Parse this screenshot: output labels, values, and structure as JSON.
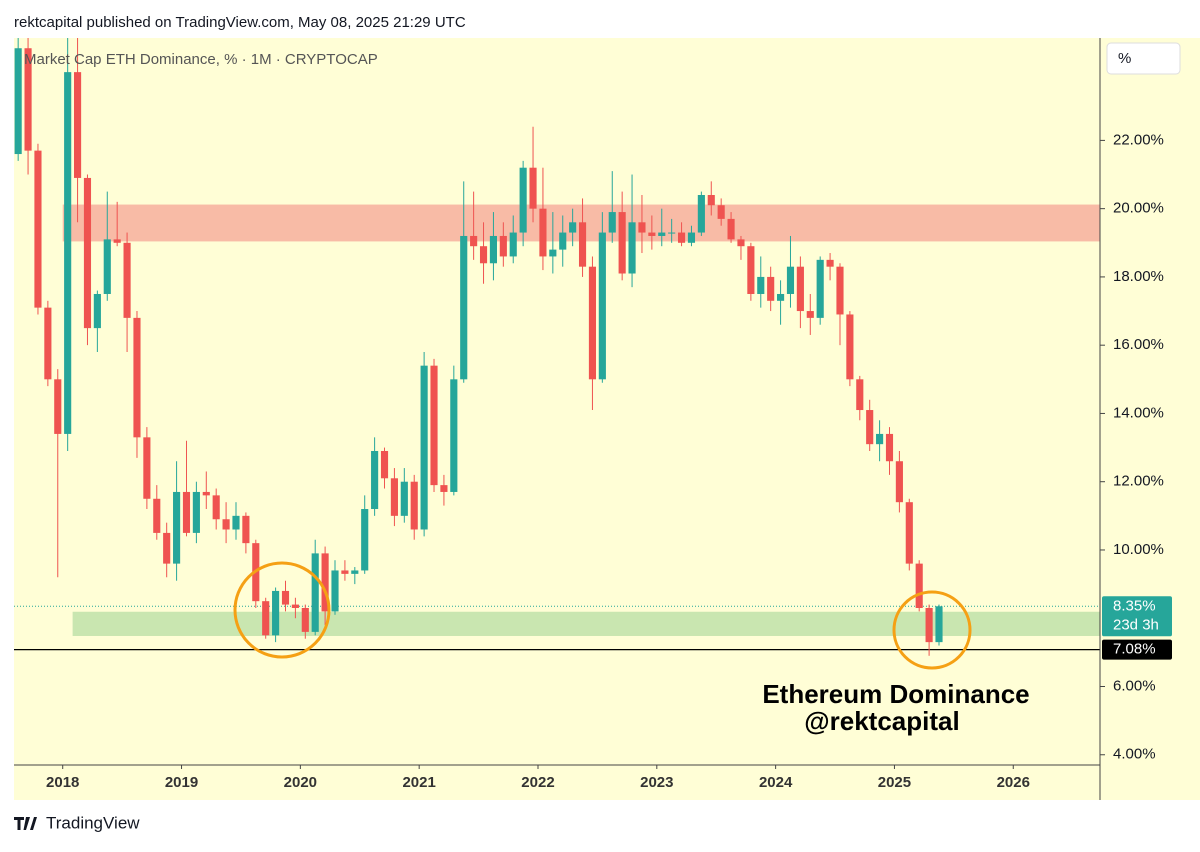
{
  "chart_data": {
    "type": "candlestick",
    "header": "rektcapital published on TradingView.com, May 08, 2025 21:29 UTC",
    "title": "Market Cap ETH Dominance, % · 1M · CRYPTOCAP",
    "unit_label": "%",
    "annotation": [
      "Ethereum Dominance",
      "@rektcapital"
    ],
    "brand": "TradingView",
    "up_color": "#26a69a",
    "down_color": "#ef5350",
    "x": [
      "2017-08",
      "2017-09",
      "2017-10",
      "2017-11",
      "2017-12",
      "2018-01",
      "2018-02",
      "2018-03",
      "2018-04",
      "2018-05",
      "2018-06",
      "2018-07",
      "2018-08",
      "2018-09",
      "2018-10",
      "2018-11",
      "2018-12",
      "2019-01",
      "2019-02",
      "2019-03",
      "2019-04",
      "2019-05",
      "2019-06",
      "2019-07",
      "2019-08",
      "2019-09",
      "2019-10",
      "2019-11",
      "2019-12",
      "2020-01",
      "2020-02",
      "2020-03",
      "2020-04",
      "2020-05",
      "2020-06",
      "2020-07",
      "2020-08",
      "2020-09",
      "2020-10",
      "2020-11",
      "2020-12",
      "2021-01",
      "2021-02",
      "2021-03",
      "2021-04",
      "2021-05",
      "2021-06",
      "2021-07",
      "2021-08",
      "2021-09",
      "2021-10",
      "2021-11",
      "2021-12",
      "2022-01",
      "2022-02",
      "2022-03",
      "2022-04",
      "2022-05",
      "2022-06",
      "2022-07",
      "2022-08",
      "2022-09",
      "2022-10",
      "2022-11",
      "2022-12",
      "2023-01",
      "2023-02",
      "2023-03",
      "2023-04",
      "2023-05",
      "2023-06",
      "2023-07",
      "2023-08",
      "2023-09",
      "2023-10",
      "2023-11",
      "2023-12",
      "2024-01",
      "2024-02",
      "2024-03",
      "2024-04",
      "2024-05",
      "2024-06",
      "2024-07",
      "2024-08",
      "2024-09",
      "2024-10",
      "2024-11",
      "2024-12",
      "2025-01",
      "2025-02",
      "2025-03",
      "2025-04",
      "2025-05"
    ],
    "open": [
      21.6,
      24.7,
      21.7,
      17.1,
      15.0,
      13.4,
      24.0,
      20.9,
      16.5,
      17.5,
      19.1,
      19.0,
      16.8,
      13.3,
      11.5,
      10.5,
      9.6,
      11.7,
      10.5,
      11.7,
      11.6,
      10.9,
      10.6,
      11.0,
      10.2,
      8.5,
      7.5,
      8.8,
      8.4,
      8.3,
      7.6,
      9.9,
      8.2,
      9.4,
      9.3,
      9.4,
      11.2,
      12.9,
      12.1,
      11.0,
      12.0,
      10.6,
      15.4,
      11.9,
      11.7,
      15.0,
      19.2,
      18.9,
      18.4,
      19.2,
      18.6,
      19.3,
      21.2,
      20.0,
      18.6,
      18.8,
      19.3,
      19.6,
      18.3,
      15.0,
      19.3,
      19.9,
      18.1,
      19.6,
      19.3,
      19.2,
      19.3,
      19.3,
      19.0,
      19.3,
      20.4,
      20.1,
      19.7,
      19.1,
      18.9,
      17.5,
      18.0,
      17.3,
      17.5,
      18.3,
      17.0,
      16.8,
      18.5,
      18.3,
      16.9,
      15.0,
      14.1,
      13.1,
      13.4,
      12.6,
      11.4,
      9.6,
      8.3,
      7.3
    ],
    "high": [
      25.0,
      25.0,
      21.9,
      17.3,
      15.3,
      25.0,
      25.0,
      21.0,
      17.6,
      20.5,
      20.2,
      19.3,
      17.0,
      13.6,
      11.9,
      10.8,
      12.6,
      13.2,
      12.0,
      12.3,
      11.8,
      11.4,
      11.4,
      11.1,
      10.3,
      8.6,
      8.9,
      9.1,
      8.6,
      8.4,
      10.3,
      10.1,
      9.7,
      9.7,
      9.5,
      11.6,
      13.3,
      13.0,
      12.4,
      12.4,
      12.2,
      15.8,
      15.6,
      12.2,
      15.4,
      20.8,
      20.5,
      19.6,
      19.9,
      19.6,
      19.8,
      21.4,
      22.4,
      21.2,
      19.9,
      19.8,
      20.0,
      20.3,
      18.6,
      19.9,
      21.1,
      20.5,
      21.0,
      20.4,
      19.8,
      20.0,
      19.7,
      19.6,
      19.5,
      20.5,
      20.8,
      20.3,
      19.9,
      19.2,
      19.0,
      18.6,
      18.3,
      17.9,
      19.2,
      18.6,
      17.5,
      18.6,
      18.7,
      18.4,
      17.0,
      15.1,
      14.4,
      13.8,
      13.6,
      12.9,
      11.5,
      9.7,
      8.4,
      8.4
    ],
    "low": [
      21.4,
      21.0,
      16.9,
      14.8,
      9.2,
      12.9,
      19.6,
      16.0,
      15.8,
      17.3,
      18.9,
      15.8,
      12.7,
      11.2,
      10.3,
      9.2,
      9.1,
      10.4,
      10.2,
      11.2,
      10.6,
      10.2,
      10.3,
      9.9,
      8.3,
      7.4,
      7.3,
      8.2,
      8.0,
      7.4,
      7.5,
      7.8,
      8.1,
      9.1,
      9.0,
      9.3,
      11.0,
      11.8,
      10.7,
      10.8,
      10.3,
      10.4,
      11.7,
      11.3,
      11.6,
      14.9,
      18.5,
      17.8,
      17.9,
      18.3,
      18.4,
      18.9,
      19.6,
      18.2,
      18.1,
      18.3,
      18.9,
      18.0,
      14.1,
      14.9,
      19.0,
      17.9,
      17.7,
      18.7,
      18.8,
      18.9,
      19.0,
      18.9,
      18.9,
      19.2,
      19.8,
      19.5,
      19.0,
      18.5,
      17.3,
      17.1,
      17.0,
      16.6,
      17.1,
      16.5,
      16.3,
      16.6,
      17.9,
      16.0,
      14.8,
      13.8,
      12.9,
      12.6,
      12.2,
      11.1,
      9.4,
      8.2,
      6.9,
      7.2
    ],
    "close": [
      24.7,
      21.7,
      17.1,
      15.0,
      13.4,
      24.0,
      20.9,
      16.5,
      17.5,
      19.1,
      19.0,
      16.8,
      13.3,
      11.5,
      10.5,
      9.6,
      11.7,
      10.5,
      11.7,
      11.6,
      10.9,
      10.6,
      11.0,
      10.2,
      8.5,
      7.5,
      8.8,
      8.4,
      8.3,
      7.6,
      9.9,
      8.2,
      9.4,
      9.3,
      9.4,
      11.2,
      12.9,
      12.1,
      11.0,
      12.0,
      10.6,
      15.4,
      11.9,
      11.7,
      15.0,
      19.2,
      18.9,
      18.4,
      19.2,
      18.6,
      19.3,
      21.2,
      20.0,
      18.6,
      18.8,
      19.3,
      19.6,
      18.3,
      15.0,
      19.3,
      19.9,
      18.1,
      19.6,
      19.3,
      19.2,
      19.3,
      19.3,
      19.0,
      19.3,
      20.4,
      20.1,
      19.7,
      19.1,
      18.9,
      17.5,
      18.0,
      17.3,
      17.5,
      18.3,
      17.0,
      16.8,
      18.5,
      18.3,
      16.9,
      15.0,
      14.1,
      13.1,
      13.4,
      12.6,
      11.4,
      9.6,
      8.3,
      7.3,
      8.35
    ],
    "xlim": [
      2017.59,
      2026.73
    ],
    "xticks": [
      2018,
      2019,
      2020,
      2021,
      2022,
      2023,
      2024,
      2025,
      2026
    ],
    "ylim": [
      3.7,
      25.0
    ],
    "yticks": [
      {
        "value": 4,
        "label": "4.00%"
      },
      {
        "value": 6,
        "label": "6.00%"
      },
      {
        "value": 10,
        "label": "10.00%"
      },
      {
        "value": 12,
        "label": "12.00%"
      },
      {
        "value": 14,
        "label": "14.00%"
      },
      {
        "value": 16,
        "label": "16.00%"
      },
      {
        "value": 18,
        "label": "18.00%"
      },
      {
        "value": 20,
        "label": "20.00%"
      },
      {
        "value": 22,
        "label": "22.00%"
      }
    ],
    "zones": [
      {
        "from": 19.04,
        "to": 20.12,
        "start": "2018-01",
        "color": "#f8bba6"
      },
      {
        "from": 7.48,
        "to": 8.19,
        "start": "2018-02",
        "color": "#c9e6b0"
      }
    ],
    "last_price": {
      "value": 8.35,
      "label": "8.35%",
      "countdown": "23d 3h",
      "color": "#26a69a"
    },
    "level_line": {
      "value": 7.08,
      "label": "7.08%",
      "color": "#000000"
    }
  }
}
